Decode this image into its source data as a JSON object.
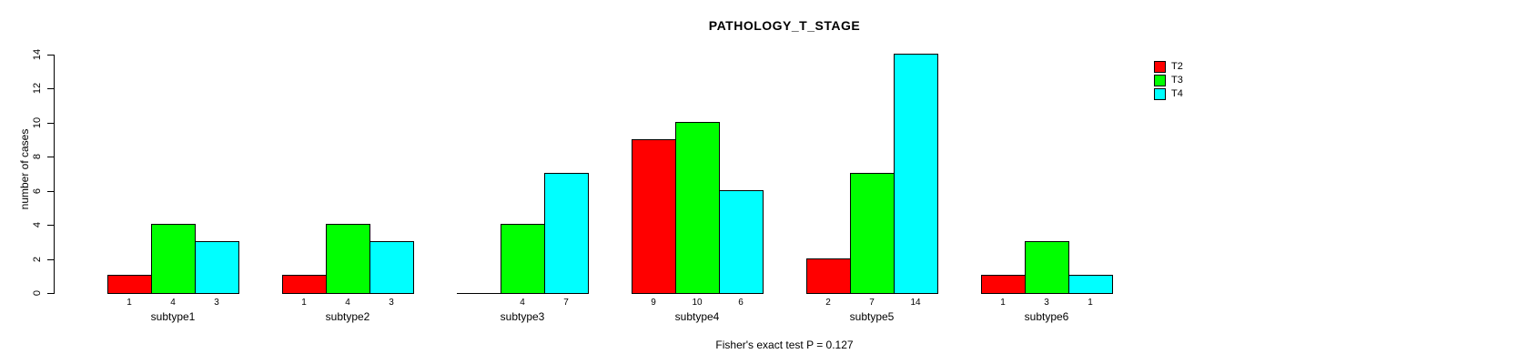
{
  "chart_data": {
    "type": "bar",
    "title": "PATHOLOGY_T_STAGE",
    "ylabel": "number of cases",
    "xlabel": "",
    "ylim": [
      0,
      14
    ],
    "yticks": [
      0,
      2,
      4,
      6,
      8,
      10,
      12,
      14
    ],
    "categories": [
      "subtype1",
      "subtype2",
      "subtype3",
      "subtype4",
      "subtype5",
      "subtype6"
    ],
    "series": [
      {
        "name": "T2",
        "color": "#ff0000",
        "values": [
          1,
          1,
          0,
          9,
          2,
          1
        ]
      },
      {
        "name": "T3",
        "color": "#00ff00",
        "values": [
          4,
          4,
          4,
          10,
          7,
          3
        ]
      },
      {
        "name": "T4",
        "color": "#00ffff",
        "values": [
          3,
          3,
          7,
          6,
          14,
          1
        ]
      }
    ],
    "bar_value_labels_shown": true,
    "zero_value_label_hidden": true,
    "legend_position": "top-right",
    "grid": false,
    "annotation": "Fisher's exact test P = 0.127"
  }
}
